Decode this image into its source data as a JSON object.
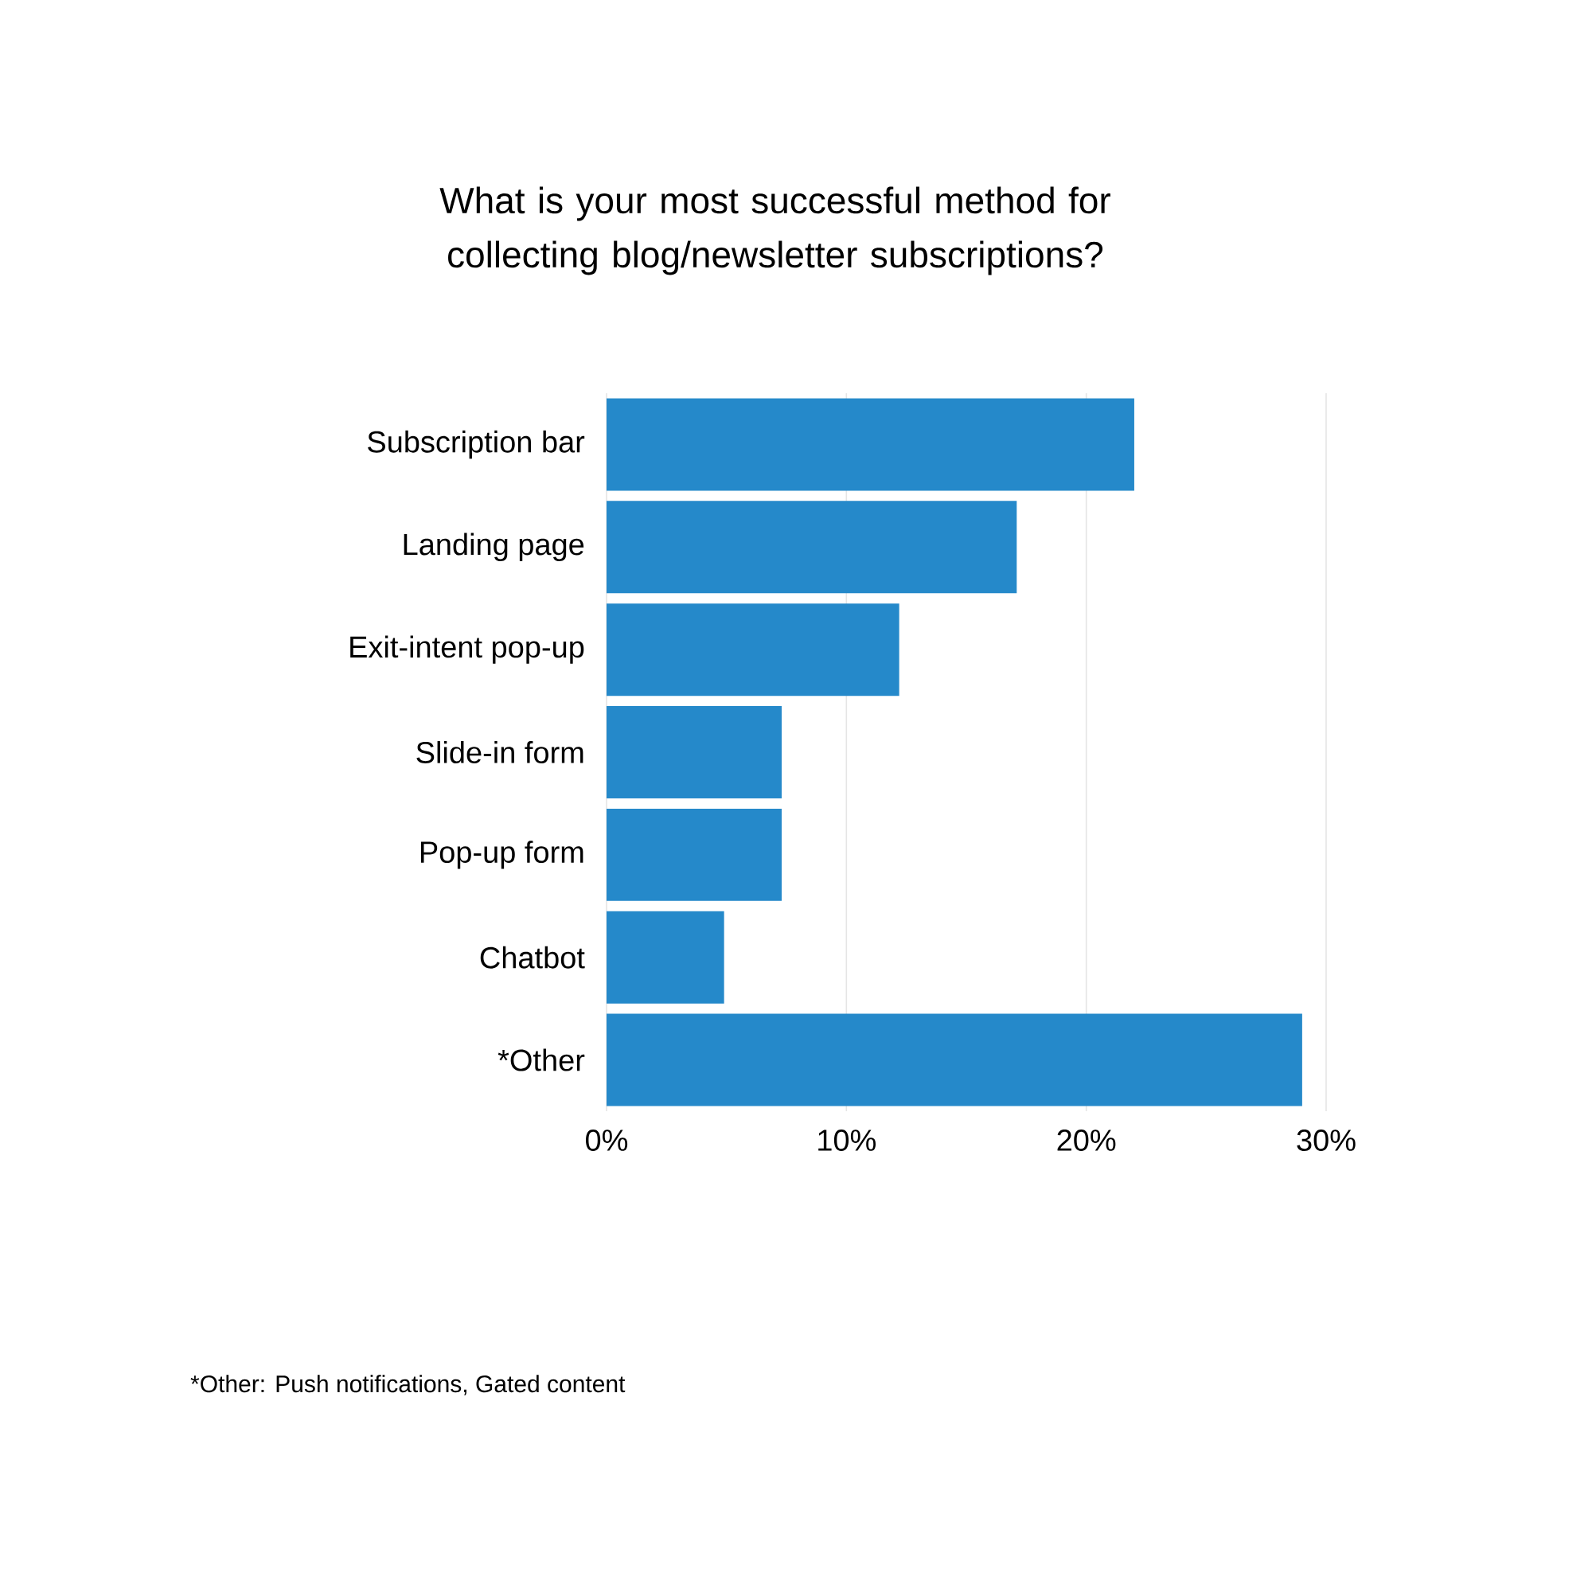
{
  "chart_data": {
    "type": "bar",
    "orientation": "horizontal",
    "title": "What is your most successful method for collecting blog/newsletter subscriptions?",
    "categories": [
      "Subscription bar",
      "Landing page",
      "Exit-intent pop-up",
      "Slide-in form",
      "Pop-up form",
      "Chatbot",
      "*Other"
    ],
    "values": [
      22.0,
      17.1,
      12.2,
      7.3,
      7.3,
      4.9,
      29.0
    ],
    "color": "#2589ca",
    "xlim": [
      0,
      30
    ],
    "xticks": [
      {
        "value": 0,
        "label": "0%"
      },
      {
        "value": 10,
        "label": "10%"
      },
      {
        "value": 20,
        "label": "20%"
      },
      {
        "value": 30,
        "label": "30%"
      }
    ],
    "grid": "x",
    "annotations": [
      "*Other: Push notifications, Gated  content"
    ]
  }
}
